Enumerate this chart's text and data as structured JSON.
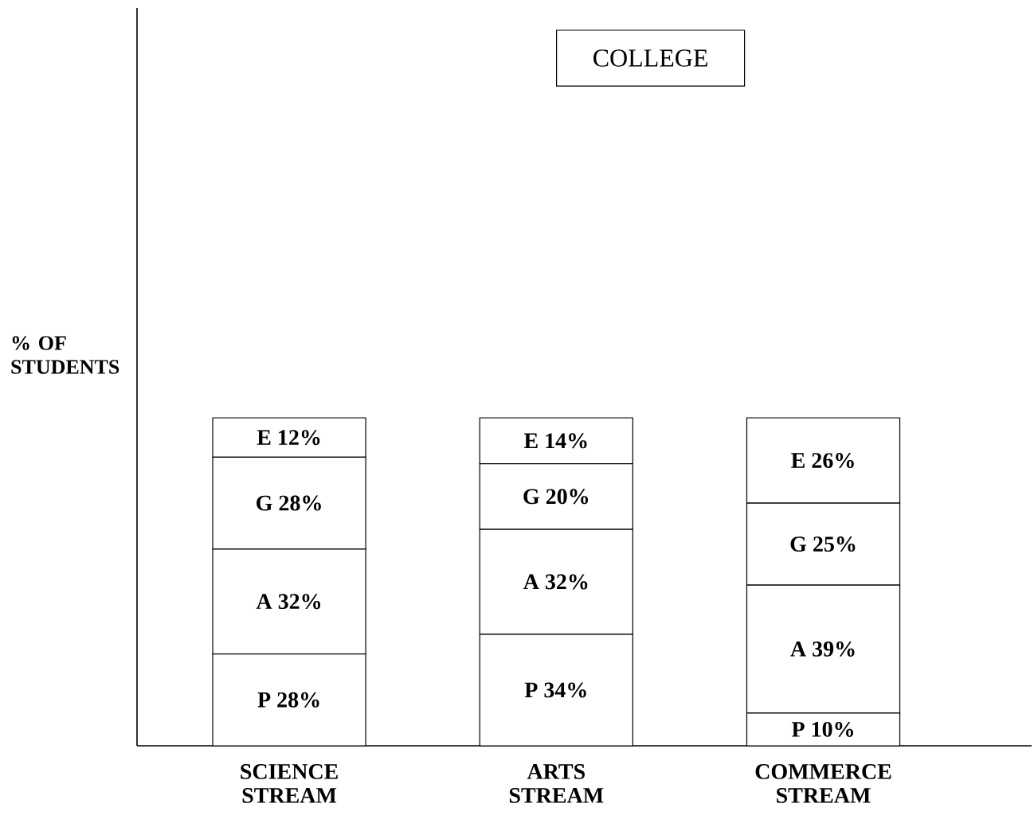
{
  "chart_data": {
    "type": "bar",
    "stacked": true,
    "title": "COLLEGE",
    "ylabel": "% OF STUDENTS",
    "categories": [
      "SCIENCE STREAM",
      "ARTS STREAM",
      "COMMERCE STREAM"
    ],
    "series": [
      {
        "color": "#ffffff",
        "values": [
          28,
          34,
          10
        ],
        "value_labels": [
          "P 28%",
          "P 34%",
          "P 10%"
        ]
      },
      {
        "color": "#ffffff",
        "values": [
          32,
          32,
          39
        ],
        "value_labels": [
          "A 32%",
          "A 32%",
          "A 39%"
        ]
      },
      {
        "color": "#ffffff",
        "values": [
          28,
          20,
          25
        ],
        "value_labels": [
          "G 28%",
          "G 20%",
          "G 25%"
        ]
      },
      {
        "color": "#ffffff",
        "values": [
          12,
          14,
          26
        ],
        "value_labels": [
          "E 12%",
          "E 14%",
          "E 26%"
        ]
      }
    ]
  }
}
